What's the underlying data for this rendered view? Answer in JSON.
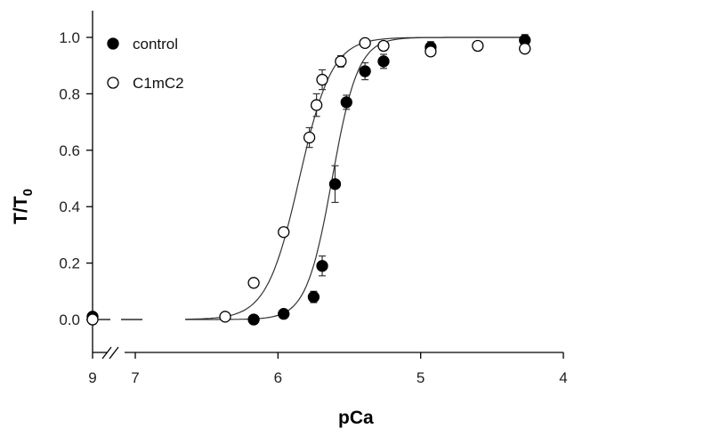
{
  "chart_data": {
    "type": "scatter",
    "xlabel": "pCa",
    "ylabel_main": "T/T",
    "ylabel_sub": "0",
    "x_reversed": true,
    "axis_break": true,
    "xlim": [
      4,
      7.3
    ],
    "ylim": [
      -0.1,
      1.1
    ],
    "x_ticks": [
      {
        "value": 9,
        "label": "9"
      },
      {
        "value": 7,
        "label": "7"
      },
      {
        "value": 6,
        "label": "6"
      },
      {
        "value": 5,
        "label": "5"
      },
      {
        "value": 4,
        "label": "4"
      }
    ],
    "y_ticks": [
      {
        "value": 0.0,
        "label": "0.0"
      },
      {
        "value": 0.2,
        "label": "0.2"
      },
      {
        "value": 0.4,
        "label": "0.4"
      },
      {
        "value": 0.6,
        "label": "0.6"
      },
      {
        "value": 0.8,
        "label": "0.8"
      },
      {
        "value": 1.0,
        "label": "1.0"
      }
    ],
    "legend_position": "top-left",
    "series": [
      {
        "name": "control",
        "marker": "filled-circle",
        "fit": {
          "pCa50": 5.62,
          "hill": 4.8,
          "x_from": 6.65,
          "x_to": 4.3
        },
        "points": [
          {
            "x": 9,
            "y": 0.01,
            "err": 0
          },
          {
            "x": 6.17,
            "y": 0.0,
            "err": 0
          },
          {
            "x": 5.96,
            "y": 0.02,
            "err": 0
          },
          {
            "x": 5.75,
            "y": 0.08,
            "err": 0.02
          },
          {
            "x": 5.69,
            "y": 0.19,
            "err": 0.035
          },
          {
            "x": 5.6,
            "y": 0.48,
            "err": 0.065
          },
          {
            "x": 5.52,
            "y": 0.77,
            "err": 0.025
          },
          {
            "x": 5.39,
            "y": 0.88,
            "err": 0.03
          },
          {
            "x": 5.26,
            "y": 0.915,
            "err": 0.025
          },
          {
            "x": 4.93,
            "y": 0.965,
            "err": 0.02
          },
          {
            "x": 4.27,
            "y": 0.99,
            "err": 0.02
          }
        ]
      },
      {
        "name": "C1mC2",
        "marker": "open-circle",
        "fit": {
          "pCa50": 5.85,
          "hill": 3.8,
          "x_from": 6.65,
          "x_to": 4.3
        },
        "points": [
          {
            "x": 9,
            "y": 0.0,
            "err": 0
          },
          {
            "x": 6.37,
            "y": 0.01,
            "err": 0
          },
          {
            "x": 6.17,
            "y": 0.13,
            "err": 0
          },
          {
            "x": 5.96,
            "y": 0.31,
            "err": 0
          },
          {
            "x": 5.78,
            "y": 0.645,
            "err": 0.035
          },
          {
            "x": 5.73,
            "y": 0.76,
            "err": 0.04
          },
          {
            "x": 5.69,
            "y": 0.85,
            "err": 0.035
          },
          {
            "x": 5.56,
            "y": 0.915,
            "err": 0.02
          },
          {
            "x": 5.39,
            "y": 0.98,
            "err": 0
          },
          {
            "x": 5.26,
            "y": 0.97,
            "err": 0
          },
          {
            "x": 4.93,
            "y": 0.95,
            "err": 0
          },
          {
            "x": 4.6,
            "y": 0.97,
            "err": 0
          },
          {
            "x": 4.27,
            "y": 0.96,
            "err": 0
          }
        ]
      }
    ]
  }
}
